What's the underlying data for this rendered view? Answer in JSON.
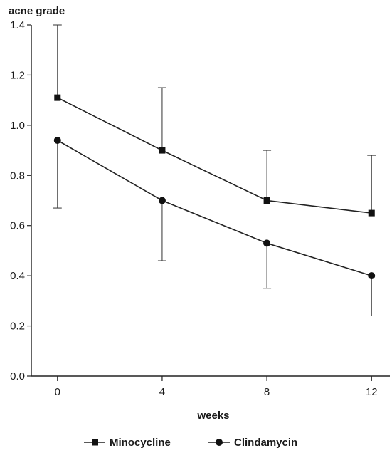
{
  "chart_data": {
    "type": "line",
    "title": "",
    "ylabel": "acne grade",
    "xlabel": "weeks",
    "x": [
      0,
      4,
      8,
      12
    ],
    "x_ticks": [
      "0",
      "4",
      "8",
      "12"
    ],
    "xlim": [
      -1,
      12.7
    ],
    "ylim": [
      0,
      1.4
    ],
    "y_ticks": [
      "0.0",
      "0.2",
      "0.4",
      "0.6",
      "0.8",
      "1.0",
      "1.2",
      "1.4"
    ],
    "grid": false,
    "legend_position": "bottom",
    "series": [
      {
        "name": "Minocycline",
        "marker": "square",
        "values": [
          1.11,
          0.9,
          0.7,
          0.65
        ],
        "error_upper": [
          1.4,
          1.15,
          0.9,
          0.88
        ],
        "error_lower": [
          null,
          null,
          null,
          null
        ]
      },
      {
        "name": "Clindamycin",
        "marker": "circle",
        "values": [
          0.94,
          0.7,
          0.53,
          0.4
        ],
        "error_upper": [
          null,
          null,
          null,
          null
        ],
        "error_lower": [
          0.67,
          0.46,
          0.35,
          0.24
        ]
      }
    ],
    "colors": {
      "line": "#222222",
      "axis": "#222222",
      "error": "#333333"
    }
  }
}
